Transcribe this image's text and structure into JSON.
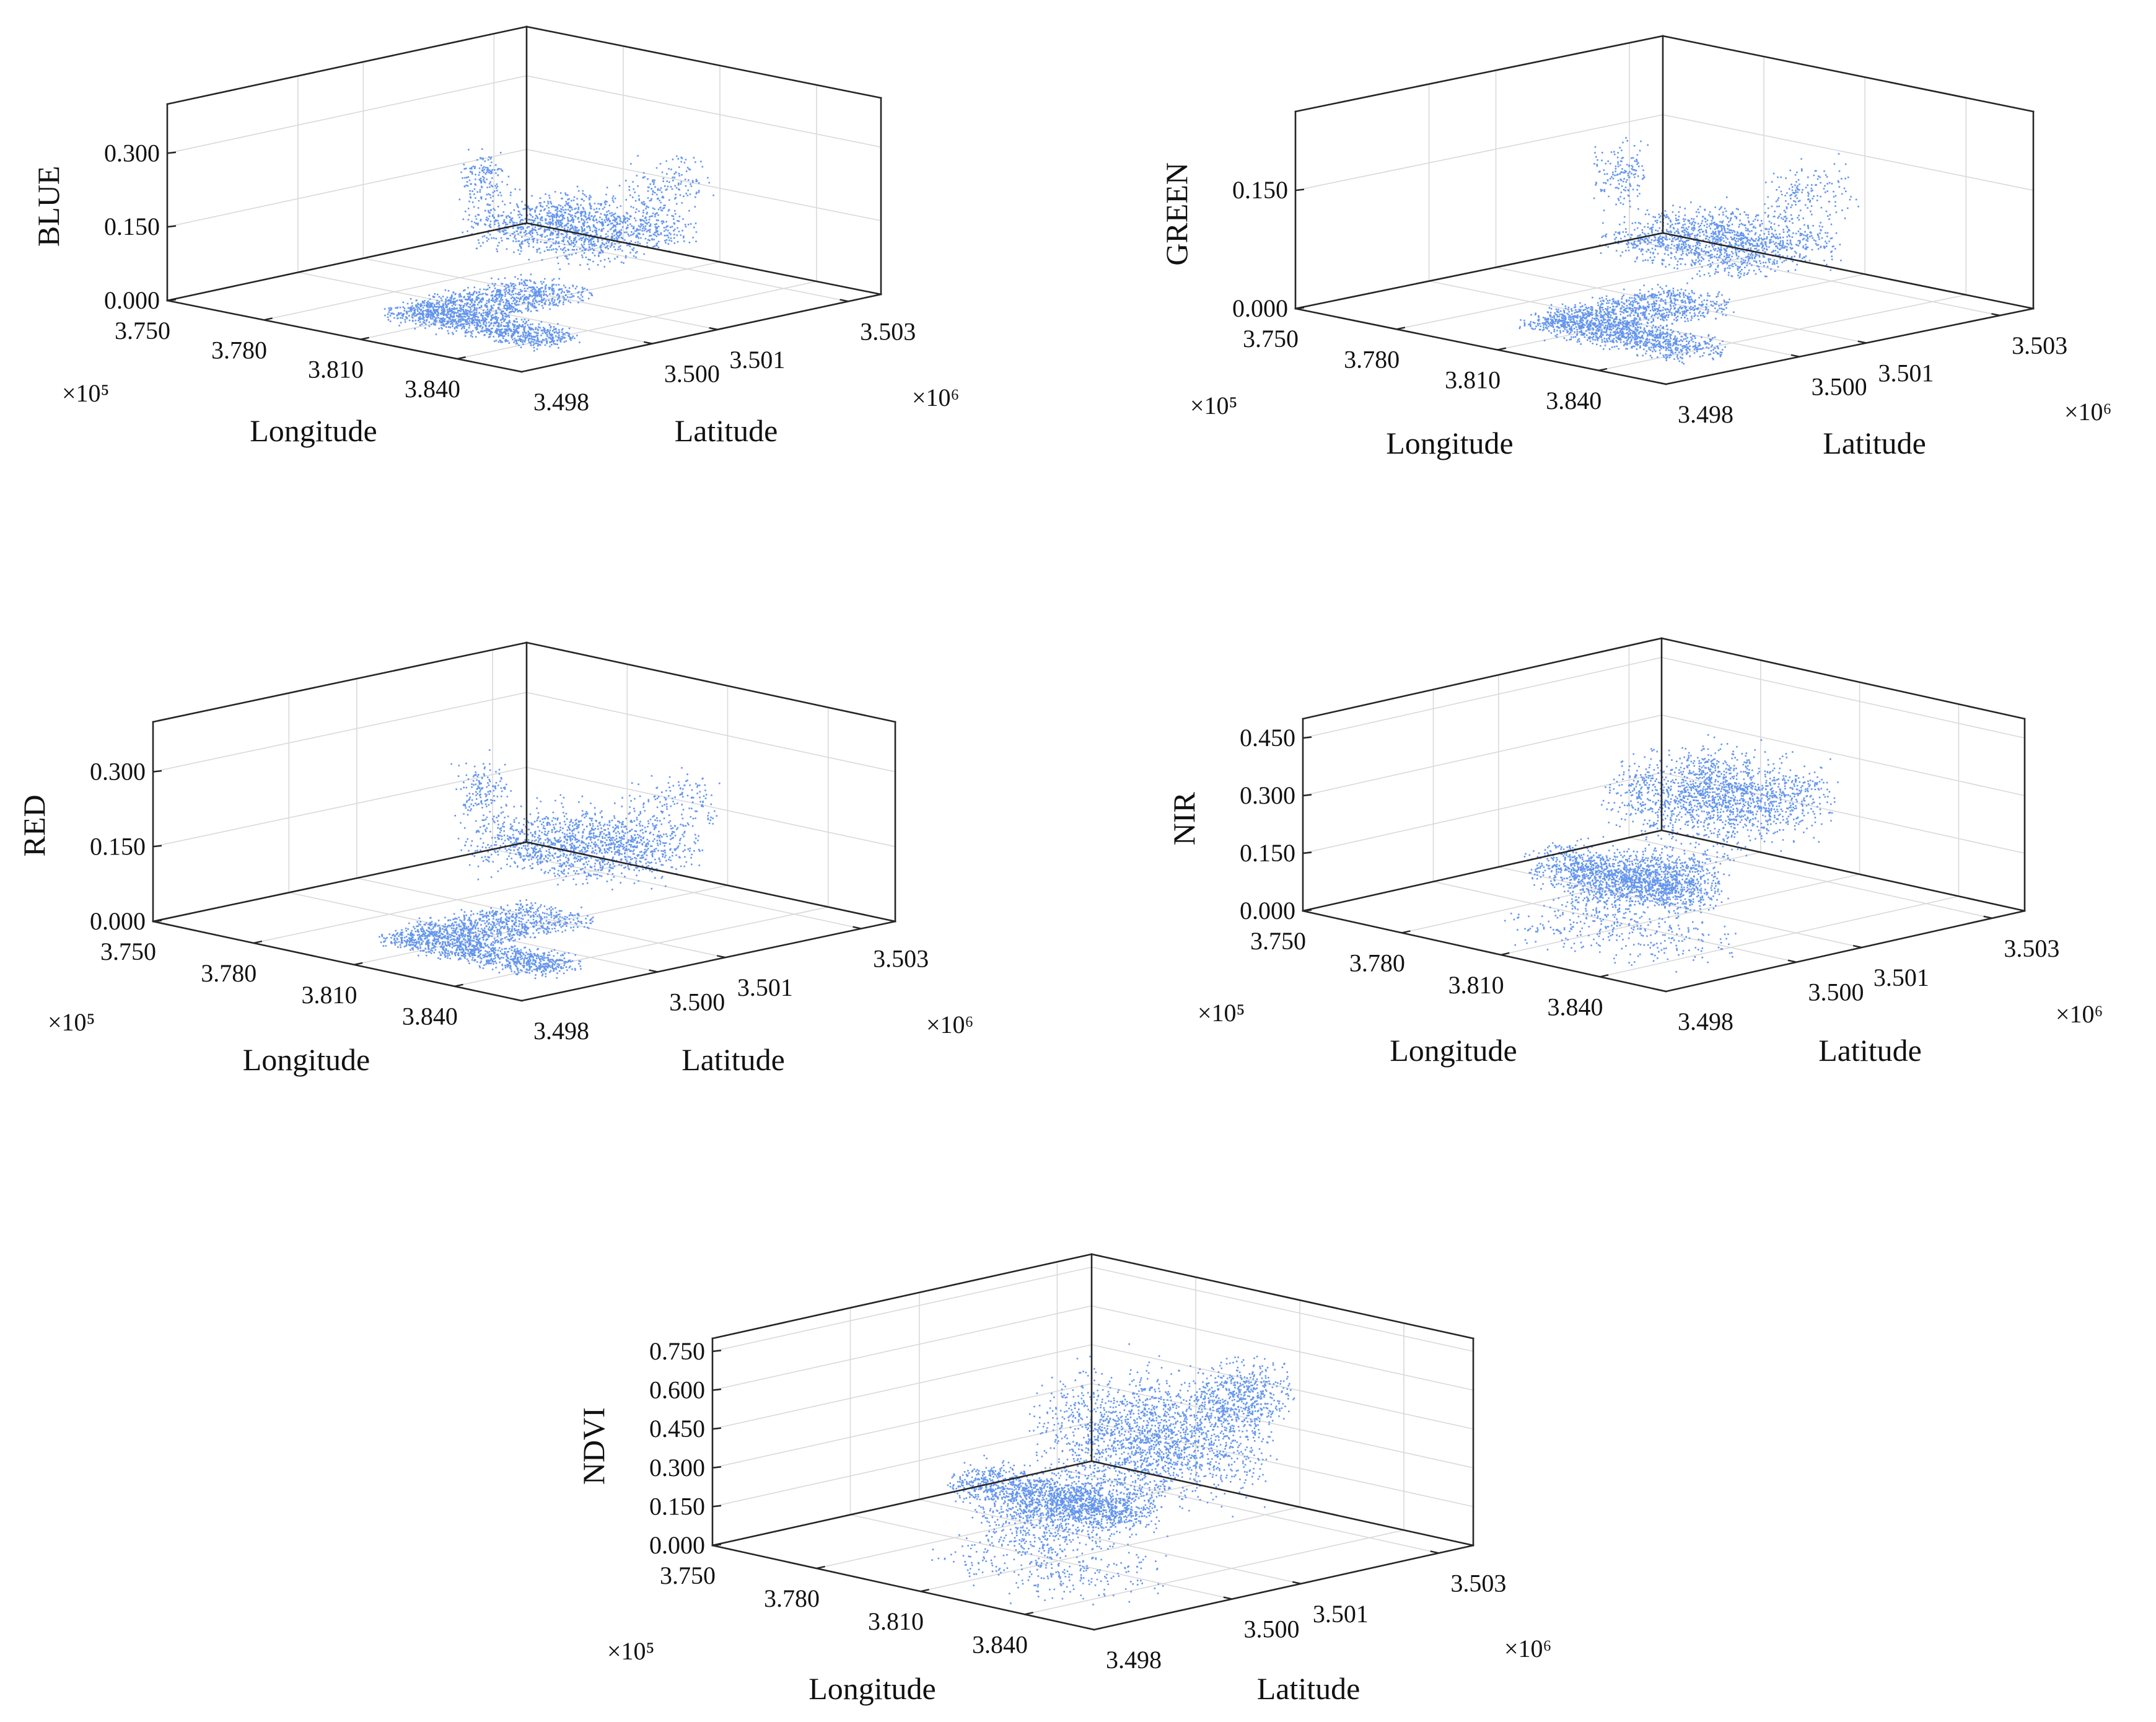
{
  "figure": {
    "marker_color": "#6495ED"
  },
  "chart_data": [
    {
      "id": "blue",
      "type": "scatter",
      "title": "",
      "xlabel": "Longitude",
      "ylabel": "Latitude",
      "zlabel": "BLUE",
      "x_multiplier": "×10⁵",
      "y_multiplier": "×10⁶",
      "xlim": [
        375000,
        386000
      ],
      "ylim": [
        3498000,
        3503500
      ],
      "zlim": [
        0,
        0.4
      ],
      "x_ticks": [
        {
          "value": 375000,
          "label": "3.750"
        },
        {
          "value": 378000,
          "label": "3.780"
        },
        {
          "value": 381000,
          "label": "3.810"
        },
        {
          "value": 384000,
          "label": "3.840"
        }
      ],
      "y_ticks": [
        {
          "value": 3498000,
          "label": "3.498"
        },
        {
          "value": 3500000,
          "label": "3.500"
        },
        {
          "value": 3501000,
          "label": "3.501"
        },
        {
          "value": 3503000,
          "label": "3.503"
        }
      ],
      "z_ticks": [
        {
          "value": 0,
          "label": "0.000"
        },
        {
          "value": 0.15,
          "label": "0.150"
        },
        {
          "value": 0.3,
          "label": "0.300"
        }
      ],
      "grid": true,
      "series_color": "#6495ED",
      "clusters": [
        {
          "x": [
            379000,
            383000
          ],
          "y": [
            3500500,
            3502200
          ],
          "z": [
            0.07,
            0.2
          ],
          "n": 1300
        },
        {
          "x": [
            381000,
            385800
          ],
          "y": [
            3498300,
            3499000
          ],
          "z": [
            0.02,
            0.07
          ],
          "n": 1000
        },
        {
          "x": [
            380800,
            383000
          ],
          "y": [
            3498800,
            3500600
          ],
          "z": [
            0.02,
            0.07
          ],
          "n": 800
        },
        {
          "x": [
            378800,
            379600
          ],
          "y": [
            3500500,
            3501000
          ],
          "z": [
            0.15,
            0.3
          ],
          "n": 150
        },
        {
          "x": [
            382200,
            383300
          ],
          "y": [
            3501300,
            3502300
          ],
          "z": [
            0.15,
            0.3
          ],
          "n": 150
        }
      ]
    },
    {
      "id": "green",
      "type": "scatter",
      "title": "",
      "xlabel": "Longitude",
      "ylabel": "Latitude",
      "zlabel": "GREEN",
      "x_multiplier": "×10⁵",
      "y_multiplier": "×10⁶",
      "xlim": [
        375000,
        386000
      ],
      "ylim": [
        3498000,
        3503500
      ],
      "zlim": [
        0,
        0.25
      ],
      "x_ticks": [
        {
          "value": 375000,
          "label": "3.750"
        },
        {
          "value": 378000,
          "label": "3.780"
        },
        {
          "value": 381000,
          "label": "3.810"
        },
        {
          "value": 384000,
          "label": "3.840"
        }
      ],
      "y_ticks": [
        {
          "value": 3498000,
          "label": "3.498"
        },
        {
          "value": 3500000,
          "label": "3.500"
        },
        {
          "value": 3501000,
          "label": "3.501"
        },
        {
          "value": 3503000,
          "label": "3.503"
        }
      ],
      "z_ticks": [
        {
          "value": 0,
          "label": "0.000"
        },
        {
          "value": 0.15,
          "label": "0.150"
        }
      ],
      "grid": true,
      "series_color": "#6495ED",
      "clusters": [
        {
          "x": [
            379000,
            383000
          ],
          "y": [
            3500500,
            3502200
          ],
          "z": [
            0.04,
            0.12
          ],
          "n": 1300
        },
        {
          "x": [
            381000,
            385800
          ],
          "y": [
            3498300,
            3499000
          ],
          "z": [
            0.01,
            0.05
          ],
          "n": 1000
        },
        {
          "x": [
            380800,
            383000
          ],
          "y": [
            3498800,
            3500600
          ],
          "z": [
            0.01,
            0.05
          ],
          "n": 800
        },
        {
          "x": [
            378800,
            379600
          ],
          "y": [
            3500500,
            3501000
          ],
          "z": [
            0.1,
            0.22
          ],
          "n": 150
        },
        {
          "x": [
            382200,
            383300
          ],
          "y": [
            3501300,
            3502300
          ],
          "z": [
            0.1,
            0.2
          ],
          "n": 150
        }
      ]
    },
    {
      "id": "red",
      "type": "scatter",
      "title": "",
      "xlabel": "Longitude",
      "ylabel": "Latitude",
      "zlabel": "RED",
      "x_multiplier": "×10⁵",
      "y_multiplier": "×10⁶",
      "xlim": [
        375000,
        386000
      ],
      "ylim": [
        3498000,
        3503500
      ],
      "zlim": [
        0,
        0.4
      ],
      "x_ticks": [
        {
          "value": 375000,
          "label": "3.750"
        },
        {
          "value": 378000,
          "label": "3.780"
        },
        {
          "value": 381000,
          "label": "3.810"
        },
        {
          "value": 384000,
          "label": "3.840"
        }
      ],
      "y_ticks": [
        {
          "value": 3498000,
          "label": "3.498"
        },
        {
          "value": 3500000,
          "label": "3.500"
        },
        {
          "value": 3501000,
          "label": "3.501"
        },
        {
          "value": 3503000,
          "label": "3.503"
        }
      ],
      "z_ticks": [
        {
          "value": 0,
          "label": "0.000"
        },
        {
          "value": 0.15,
          "label": "0.150"
        },
        {
          "value": 0.3,
          "label": "0.300"
        }
      ],
      "grid": true,
      "series_color": "#6495ED",
      "clusters": [
        {
          "x": [
            379000,
            383000
          ],
          "y": [
            3500500,
            3502200
          ],
          "z": [
            0.07,
            0.22
          ],
          "n": 1300
        },
        {
          "x": [
            381000,
            385800
          ],
          "y": [
            3498300,
            3499000
          ],
          "z": [
            0.02,
            0.07
          ],
          "n": 1000
        },
        {
          "x": [
            380800,
            383000
          ],
          "y": [
            3498800,
            3500600
          ],
          "z": [
            0.02,
            0.07
          ],
          "n": 800
        },
        {
          "x": [
            378800,
            379600
          ],
          "y": [
            3500500,
            3501000
          ],
          "z": [
            0.15,
            0.33
          ],
          "n": 150
        },
        {
          "x": [
            382200,
            383300
          ],
          "y": [
            3501300,
            3502300
          ],
          "z": [
            0.15,
            0.32
          ],
          "n": 150
        }
      ]
    },
    {
      "id": "nir",
      "type": "scatter",
      "title": "",
      "xlabel": "Longitude",
      "ylabel": "Latitude",
      "zlabel": "NIR",
      "x_multiplier": "×10⁵",
      "y_multiplier": "×10⁶",
      "xlim": [
        375000,
        386000
      ],
      "ylim": [
        3498000,
        3503500
      ],
      "zlim": [
        0,
        0.5
      ],
      "x_ticks": [
        {
          "value": 375000,
          "label": "3.750"
        },
        {
          "value": 378000,
          "label": "3.780"
        },
        {
          "value": 381000,
          "label": "3.810"
        },
        {
          "value": 384000,
          "label": "3.840"
        }
      ],
      "y_ticks": [
        {
          "value": 3498000,
          "label": "3.498"
        },
        {
          "value": 3500000,
          "label": "3.500"
        },
        {
          "value": 3501000,
          "label": "3.501"
        },
        {
          "value": 3503000,
          "label": "3.503"
        }
      ],
      "z_ticks": [
        {
          "value": 0,
          "label": "0.000"
        },
        {
          "value": 0.15,
          "label": "0.150"
        },
        {
          "value": 0.3,
          "label": "0.300"
        },
        {
          "value": 0.45,
          "label": "0.450"
        }
      ],
      "grid": true,
      "series_color": "#6495ED",
      "clusters": [
        {
          "x": [
            379000,
            383000
          ],
          "y": [
            3500500,
            3502200
          ],
          "z": [
            0.15,
            0.42
          ],
          "n": 1600
        },
        {
          "x": [
            381000,
            385800
          ],
          "y": [
            3498300,
            3499000
          ],
          "z": [
            0.15,
            0.3
          ],
          "n": 1000
        },
        {
          "x": [
            380800,
            383000
          ],
          "y": [
            3498800,
            3500600
          ],
          "z": [
            0.05,
            0.25
          ],
          "n": 800
        },
        {
          "x": [
            381000,
            385500
          ],
          "y": [
            3498000,
            3499500
          ],
          "z": [
            0.0,
            0.15
          ],
          "n": 300
        }
      ]
    },
    {
      "id": "ndvi",
      "type": "scatter",
      "title": "",
      "xlabel": "Longitude",
      "ylabel": "Latitude",
      "zlabel": "NDVI",
      "x_multiplier": "×10⁵",
      "y_multiplier": "×10⁶",
      "xlim": [
        375000,
        386000
      ],
      "ylim": [
        3498000,
        3503500
      ],
      "zlim": [
        0,
        0.8
      ],
      "x_ticks": [
        {
          "value": 375000,
          "label": "3.750"
        },
        {
          "value": 378000,
          "label": "3.780"
        },
        {
          "value": 381000,
          "label": "3.810"
        },
        {
          "value": 384000,
          "label": "3.840"
        }
      ],
      "y_ticks": [
        {
          "value": 3498000,
          "label": "3.498"
        },
        {
          "value": 3500000,
          "label": "3.500"
        },
        {
          "value": 3501000,
          "label": "3.501"
        },
        {
          "value": 3503000,
          "label": "3.503"
        }
      ],
      "z_ticks": [
        {
          "value": 0,
          "label": "0.000"
        },
        {
          "value": 0.15,
          "label": "0.150"
        },
        {
          "value": 0.3,
          "label": "0.300"
        },
        {
          "value": 0.45,
          "label": "0.450"
        },
        {
          "value": 0.6,
          "label": "0.600"
        },
        {
          "value": 0.75,
          "label": "0.750"
        }
      ],
      "grid": true,
      "series_color": "#6495ED",
      "clusters": [
        {
          "x": [
            379000,
            383000
          ],
          "y": [
            3500500,
            3502200
          ],
          "z": [
            0.1,
            0.7
          ],
          "n": 1800
        },
        {
          "x": [
            381000,
            385800
          ],
          "y": [
            3498300,
            3499000
          ],
          "z": [
            0.3,
            0.5
          ],
          "n": 1100
        },
        {
          "x": [
            380800,
            383000
          ],
          "y": [
            3498800,
            3500600
          ],
          "z": [
            0.05,
            0.45
          ],
          "n": 900
        },
        {
          "x": [
            382000,
            383300
          ],
          "y": [
            3501300,
            3502300
          ],
          "z": [
            0.4,
            0.76
          ],
          "n": 500
        },
        {
          "x": [
            381000,
            385500
          ],
          "y": [
            3498000,
            3499500
          ],
          "z": [
            0.0,
            0.25
          ],
          "n": 300
        }
      ]
    }
  ]
}
